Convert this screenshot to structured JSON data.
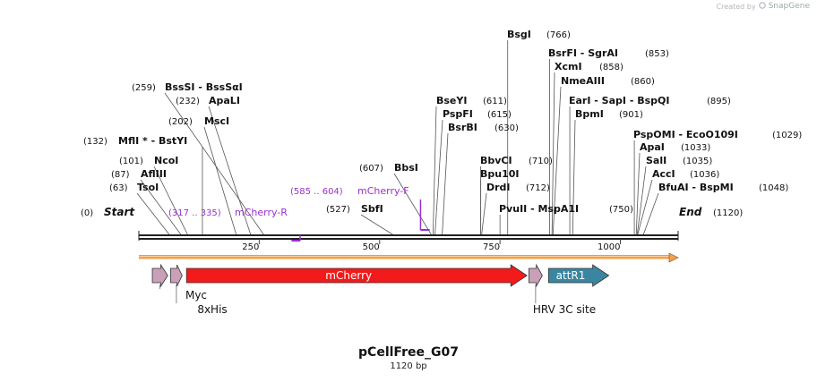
{
  "credit": {
    "created_by": "Created by",
    "brand": "SnapGene"
  },
  "plasmid": {
    "name": "pCellFree_G07",
    "length": "1120 bp",
    "length_bp": 1120
  },
  "colors": {
    "primer": "#9b30d0",
    "mcherry": "#f21a1a",
    "tag": "#c8a0b8",
    "attr": "#3a86a0",
    "orange_bar": "#f3a14a",
    "line": "#222222"
  },
  "ruler": {
    "ticks": [
      {
        "pos": 250,
        "label": "250"
      },
      {
        "pos": 500,
        "label": "500"
      },
      {
        "pos": 750,
        "label": "750"
      },
      {
        "pos": 1000,
        "label": "1000"
      }
    ]
  },
  "ends": {
    "start": {
      "pos": 0,
      "num": "(0)",
      "label": "Start"
    },
    "end": {
      "pos": 1120,
      "num": "(1120)",
      "label": "End"
    }
  },
  "sites": [
    {
      "id": "tsoi",
      "label": "TsoI",
      "num": "(63)",
      "pos": 63
    },
    {
      "id": "afliii",
      "label": "AflIII",
      "num": "(87)",
      "pos": 87
    },
    {
      "id": "ncoi",
      "label": "NcoI",
      "num": "(101)",
      "pos": 101
    },
    {
      "id": "mfli",
      "label": "MflI * - BstYI",
      "num": "(132)",
      "pos": 132
    },
    {
      "id": "msci",
      "label": "MscI",
      "num": "(202)",
      "pos": 202
    },
    {
      "id": "apali",
      "label": "ApaLI",
      "num": "(232)",
      "pos": 232
    },
    {
      "id": "bsssi",
      "label": "BssSI  - BssSαI",
      "num": "(259)",
      "pos": 259
    },
    {
      "id": "sbfi",
      "label": "SbfI",
      "num": "(527)",
      "pos": 527
    },
    {
      "id": "bsai",
      "label": "BbsI",
      "num": "(607)",
      "pos": 607
    },
    {
      "id": "bseyi",
      "label": "BseYI",
      "num": "(611)",
      "pos": 611
    },
    {
      "id": "pspfi",
      "label": "PspFI",
      "num": "(615)",
      "pos": 615
    },
    {
      "id": "bsrbi",
      "label": "BsrBI",
      "num": "(630)",
      "pos": 630
    },
    {
      "id": "bbvci",
      "label": "BbvCI",
      "num": "(710)",
      "pos": 710
    },
    {
      "id": "bpu10i",
      "label": "Bpu10I",
      "num": "",
      "pos": 710
    },
    {
      "id": "drdi",
      "label": "DrdI",
      "num": "(712)",
      "pos": 712
    },
    {
      "id": "pvuii",
      "label": "PvuII  - MspA1I",
      "num": "(750)",
      "pos": 750
    },
    {
      "id": "bsgi",
      "label": "BsgI",
      "num": "(766)",
      "pos": 766
    },
    {
      "id": "bsrfi",
      "label": "BsrFI  - SgrAI",
      "num": "(853)",
      "pos": 853
    },
    {
      "id": "xcmi",
      "label": "XcmI",
      "num": "(858)",
      "pos": 858
    },
    {
      "id": "nmeaiii",
      "label": "NmeAIII",
      "num": "(860)",
      "pos": 860
    },
    {
      "id": "eari",
      "label": "EarI  - SapI  - BspQI",
      "num": "(895)",
      "pos": 895
    },
    {
      "id": "bpmi",
      "label": "BpmI",
      "num": "(901)",
      "pos": 901
    },
    {
      "id": "pspomi",
      "label": "PspOMI  - EcoO109I",
      "num": "(1029)",
      "pos": 1029
    },
    {
      "id": "apai",
      "label": "ApaI",
      "num": "(1033)",
      "pos": 1033
    },
    {
      "id": "sali",
      "label": "SalI",
      "num": "(1035)",
      "pos": 1035
    },
    {
      "id": "acci",
      "label": "AccI",
      "num": "(1036)",
      "pos": 1036
    },
    {
      "id": "bfuai",
      "label": "BfuAI  - BspMI",
      "num": "(1048)",
      "pos": 1048
    }
  ],
  "primers": [
    {
      "id": "mcherry-r",
      "label": "mCherry-R",
      "range": "(317 .. 335)",
      "start": 317,
      "end": 335,
      "direction": "reverse"
    },
    {
      "id": "mcherry-f",
      "label": "mCherry-F",
      "range": "(585 .. 604)",
      "start": 585,
      "end": 604,
      "direction": "forward"
    }
  ],
  "features": [
    {
      "id": "myc",
      "label": "Myc",
      "start": 28,
      "end": 60,
      "color": "#c8a0b8"
    },
    {
      "id": "8xhis",
      "label": "8xHis",
      "start": 66,
      "end": 90,
      "color": "#c8a0b8"
    },
    {
      "id": "mcherry",
      "label": "mCherry",
      "start": 99,
      "end": 806,
      "color": "#f21a1a"
    },
    {
      "id": "hrv3c",
      "label": "HRV 3C site",
      "start": 810,
      "end": 838,
      "color": "#c8a0b8"
    },
    {
      "id": "attr1",
      "label": "attR1",
      "start": 851,
      "end": 976,
      "color": "#3a86a0"
    }
  ]
}
